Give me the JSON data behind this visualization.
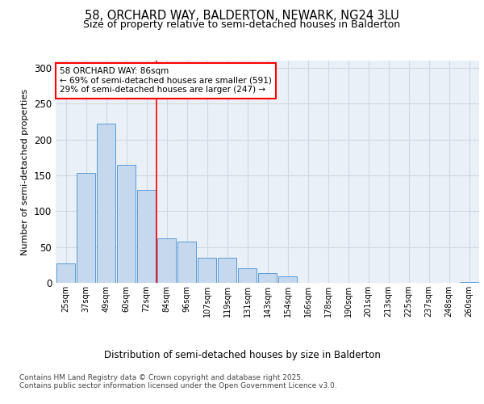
{
  "title_line1": "58, ORCHARD WAY, BALDERTON, NEWARK, NG24 3LU",
  "title_line2": "Size of property relative to semi-detached houses in Balderton",
  "xlabel": "Distribution of semi-detached houses by size in Balderton",
  "ylabel": "Number of semi-detached properties",
  "categories": [
    "25sqm",
    "37sqm",
    "49sqm",
    "60sqm",
    "72sqm",
    "84sqm",
    "96sqm",
    "107sqm",
    "119sqm",
    "131sqm",
    "143sqm",
    "154sqm",
    "166sqm",
    "178sqm",
    "190sqm",
    "201sqm",
    "213sqm",
    "225sqm",
    "237sqm",
    "248sqm",
    "260sqm"
  ],
  "values": [
    27,
    153,
    222,
    165,
    130,
    62,
    57,
    35,
    35,
    20,
    14,
    9,
    0,
    0,
    0,
    0,
    0,
    0,
    0,
    0,
    1
  ],
  "bar_color": "#c5d8ed",
  "bar_edge_color": "#5b9bd5",
  "grid_color": "#d0d8e4",
  "background_color": "#eaf0f8",
  "vline_color": "red",
  "vline_index": 4.5,
  "annotation_text": "58 ORCHARD WAY: 86sqm\n← 69% of semi-detached houses are smaller (591)\n29% of semi-detached houses are larger (247) →",
  "annotation_box_color": "white",
  "annotation_box_edge": "red",
  "footer_text": "Contains HM Land Registry data © Crown copyright and database right 2025.\nContains public sector information licensed under the Open Government Licence v3.0.",
  "ylim": [
    0,
    310
  ],
  "yticks": [
    0,
    50,
    100,
    150,
    200,
    250,
    300
  ]
}
